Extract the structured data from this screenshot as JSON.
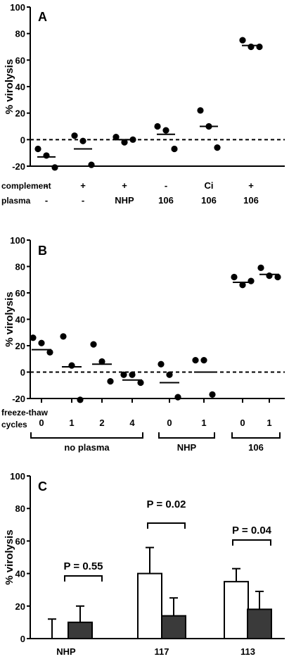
{
  "chart_data": [
    {
      "type": "scatter",
      "panel_label": "A",
      "ylabel": "% virolysis",
      "ylim": [
        -20,
        100
      ],
      "yticks": [
        -20,
        0,
        20,
        40,
        60,
        80,
        100
      ],
      "reference_line": 0,
      "row_labels": [
        "complement",
        "plasma"
      ],
      "groups": [
        {
          "complement": "-",
          "plasma": "-",
          "points": [
            -7,
            -12,
            -21
          ],
          "mean": -13
        },
        {
          "complement": "+",
          "plasma": "-",
          "points": [
            3,
            -1,
            -19
          ],
          "mean": -7
        },
        {
          "complement": "+",
          "plasma": "NHP",
          "points": [
            2,
            -2,
            0
          ],
          "mean": 0
        },
        {
          "complement": "-",
          "plasma": "106",
          "points": [
            10,
            7,
            -7
          ],
          "mean": 4
        },
        {
          "complement": "Ci",
          "plasma": "106",
          "points": [
            22,
            10,
            -6
          ],
          "mean": 10
        },
        {
          "complement": "+",
          "plasma": "106",
          "points": [
            75,
            70,
            70
          ],
          "mean": 71
        }
      ]
    },
    {
      "type": "scatter",
      "panel_label": "B",
      "ylabel": "% virolysis",
      "ylim": [
        -20,
        100
      ],
      "yticks": [
        -20,
        0,
        20,
        40,
        60,
        80,
        100
      ],
      "reference_line": 0,
      "row_label": "freeze-thaw cycles",
      "groups": [
        {
          "cycles": "0",
          "points": [
            26,
            22,
            15
          ],
          "mean": 17
        },
        {
          "cycles": "1",
          "points": [
            27,
            5,
            -21
          ],
          "mean": 4
        },
        {
          "cycles": "2",
          "points": [
            21,
            8,
            -7
          ],
          "mean": 6
        },
        {
          "cycles": "4",
          "points": [
            -2,
            -2,
            -8
          ],
          "mean": -6
        },
        {
          "cycles": "0",
          "points": [
            6,
            -2,
            -19
          ],
          "mean": -8
        },
        {
          "cycles": "1",
          "points": [
            9,
            9,
            -17
          ],
          "mean": 0
        },
        {
          "cycles": "0",
          "points": [
            72,
            66,
            69
          ],
          "mean": 68
        },
        {
          "cycles": "1",
          "points": [
            79,
            73,
            72
          ],
          "mean": 74
        }
      ],
      "brackets": [
        {
          "label": "no plasma",
          "from": 0,
          "to": 3
        },
        {
          "label": "NHP",
          "from": 4,
          "to": 5
        },
        {
          "label": "106",
          "from": 6,
          "to": 7
        }
      ]
    },
    {
      "type": "bar",
      "panel_label": "C",
      "ylabel": "% virolysis",
      "ylim": [
        0,
        100
      ],
      "yticks": [
        0,
        20,
        40,
        60,
        80,
        100
      ],
      "categories": [
        "NHP",
        "117",
        "113"
      ],
      "series": [
        {
          "color": "#ffffff",
          "values": [
            0,
            40,
            35
          ],
          "errors": [
            12,
            16,
            8
          ]
        },
        {
          "color": "#3a3a3a",
          "values": [
            10,
            14,
            18
          ],
          "errors": [
            10,
            11,
            11
          ]
        }
      ],
      "annotations": [
        "P = 0.55",
        "P = 0.02",
        "P = 0.04"
      ]
    }
  ]
}
